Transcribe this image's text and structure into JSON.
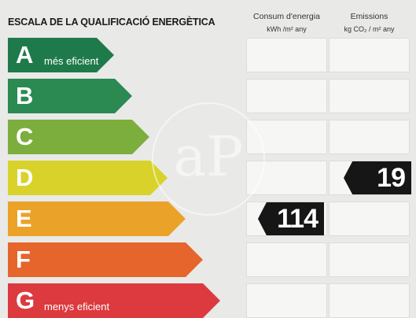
{
  "header": {
    "title": "ESCALA DE LA QUALIFICACIÓ ENERGÈTICA",
    "col1_line1": "Consum d'energia",
    "col1_line2": "kWh /m² any",
    "col2_line1": "Emissions",
    "col2_line2": "kg CO₂ / m² any"
  },
  "ratings": [
    {
      "letter": "A",
      "caption": "més eficient",
      "color": "#1f7a4b"
    },
    {
      "letter": "B",
      "caption": "",
      "color": "#2a8a52"
    },
    {
      "letter": "C",
      "caption": "",
      "color": "#7cae3e"
    },
    {
      "letter": "D",
      "caption": "",
      "color": "#d8d22a"
    },
    {
      "letter": "E",
      "caption": "",
      "color": "#eba229"
    },
    {
      "letter": "F",
      "caption": "",
      "color": "#e5652c"
    },
    {
      "letter": "G",
      "caption": "menys eficient",
      "color": "#dc3a3e"
    }
  ],
  "consumption": {
    "value": "114",
    "rating": "E"
  },
  "emissions": {
    "value": "19",
    "rating": "D"
  },
  "watermark": "aP"
}
